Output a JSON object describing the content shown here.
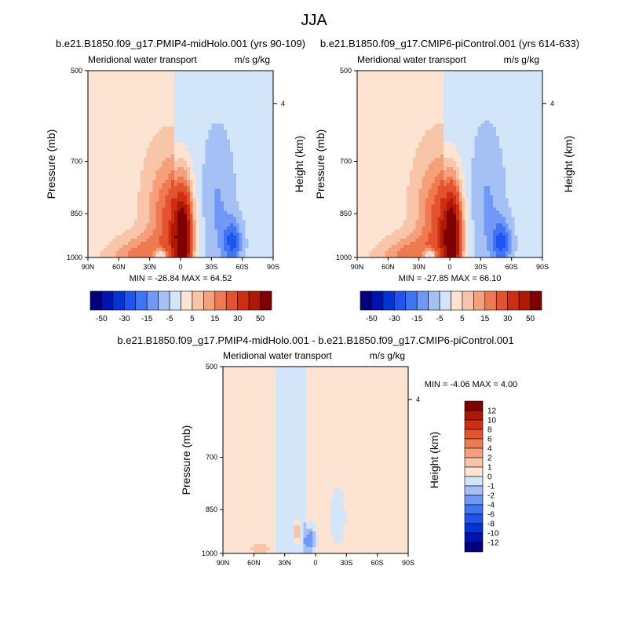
{
  "figure": {
    "title": "JJA"
  },
  "chart_data": [
    {
      "type": "heatmap",
      "title": "b.e21.B1850.f09_g17.PMIP4-midHolo.001 (yrs 90-109)",
      "left_label": "Meridional water transport",
      "right_label": "m/s g/kg",
      "ylabel": "Pressure (mb)",
      "ylabel_right": "Height (km)",
      "x_ticks": [
        "90N",
        "60N",
        "30N",
        "0",
        "30S",
        "60S",
        "90S"
      ],
      "x_values": [
        90,
        60,
        30,
        0,
        -30,
        -60,
        -90
      ],
      "y_ticks": [
        "500",
        "700",
        "850",
        "1000"
      ],
      "y_values": [
        500,
        700,
        850,
        1000
      ],
      "y_right_ticks": [
        "4"
      ],
      "ylim": [
        500,
        1000
      ],
      "xlim": [
        90,
        -90
      ],
      "stats": "MIN = -26.84  MAX =  64.52",
      "min": -26.84,
      "max": 64.52
    },
    {
      "type": "heatmap",
      "title": "b.e21.B1850.f09_g17.CMIP6-piControl.001 (yrs 614-633)",
      "left_label": "Meridional water transport",
      "right_label": "m/s g/kg",
      "ylabel": "Pressure (mb)",
      "ylabel_right": "Height (km)",
      "x_ticks": [
        "90N",
        "60N",
        "30N",
        "0",
        "30S",
        "60S",
        "90S"
      ],
      "x_values": [
        90,
        60,
        30,
        0,
        -30,
        -60,
        -90
      ],
      "y_ticks": [
        "500",
        "700",
        "850",
        "1000"
      ],
      "y_values": [
        500,
        700,
        850,
        1000
      ],
      "y_right_ticks": [
        "4"
      ],
      "ylim": [
        500,
        1000
      ],
      "xlim": [
        90,
        -90
      ],
      "stats": "MIN = -27.85  MAX =  66.10",
      "min": -27.85,
      "max": 66.1
    },
    {
      "type": "heatmap",
      "title": "b.e21.B1850.f09_g17.PMIP4-midHolo.001 - b.e21.B1850.f09_g17.CMIP6-piControl.001",
      "left_label": "Meridional water transport",
      "right_label": "m/s g/kg",
      "ylabel": "Pressure (mb)",
      "ylabel_right": "Height (km)",
      "x_ticks": [
        "90N",
        "60N",
        "30N",
        "0",
        "30S",
        "60S",
        "90S"
      ],
      "x_values": [
        90,
        60,
        30,
        0,
        -30,
        -60,
        -90
      ],
      "y_ticks": [
        "500",
        "700",
        "850",
        "1000"
      ],
      "y_values": [
        500,
        700,
        850,
        1000
      ],
      "y_right_ticks": [
        "4"
      ],
      "ylim": [
        500,
        1000
      ],
      "xlim": [
        90,
        -90
      ],
      "stats": "MIN =  -4.06  MAX =   4.00",
      "min": -4.06,
      "max": 4.0
    }
  ],
  "colorbar_top": {
    "orientation": "horizontal",
    "labels": [
      "-50",
      "-30",
      "-15",
      "-5",
      "5",
      "15",
      "30",
      "50"
    ],
    "colors": [
      "#00007f",
      "#0013b0",
      "#0035d4",
      "#1f54f0",
      "#3f75f5",
      "#6f98f7",
      "#a4c0f5",
      "#d3e5f8",
      "#fde4d2",
      "#f9c5a8",
      "#f5a07a",
      "#ee7a52",
      "#e4532f",
      "#cf2e13",
      "#ae1904",
      "#7f0000"
    ]
  },
  "colorbar_bottom": {
    "orientation": "vertical",
    "labels": [
      "12",
      "10",
      "8",
      "6",
      "4",
      "2",
      "1",
      "0",
      "-1",
      "-2",
      "-4",
      "-6",
      "-8",
      "-10",
      "-12"
    ],
    "colors": [
      "#7f0000",
      "#ae1904",
      "#cf2e13",
      "#e4532f",
      "#ee7a52",
      "#f5a07a",
      "#f9c5a8",
      "#fde4d2",
      "#d3e5f8",
      "#a4c0f5",
      "#6f98f7",
      "#3f75f5",
      "#1f54f0",
      "#0035d4",
      "#0013b0",
      "#00007f"
    ]
  }
}
